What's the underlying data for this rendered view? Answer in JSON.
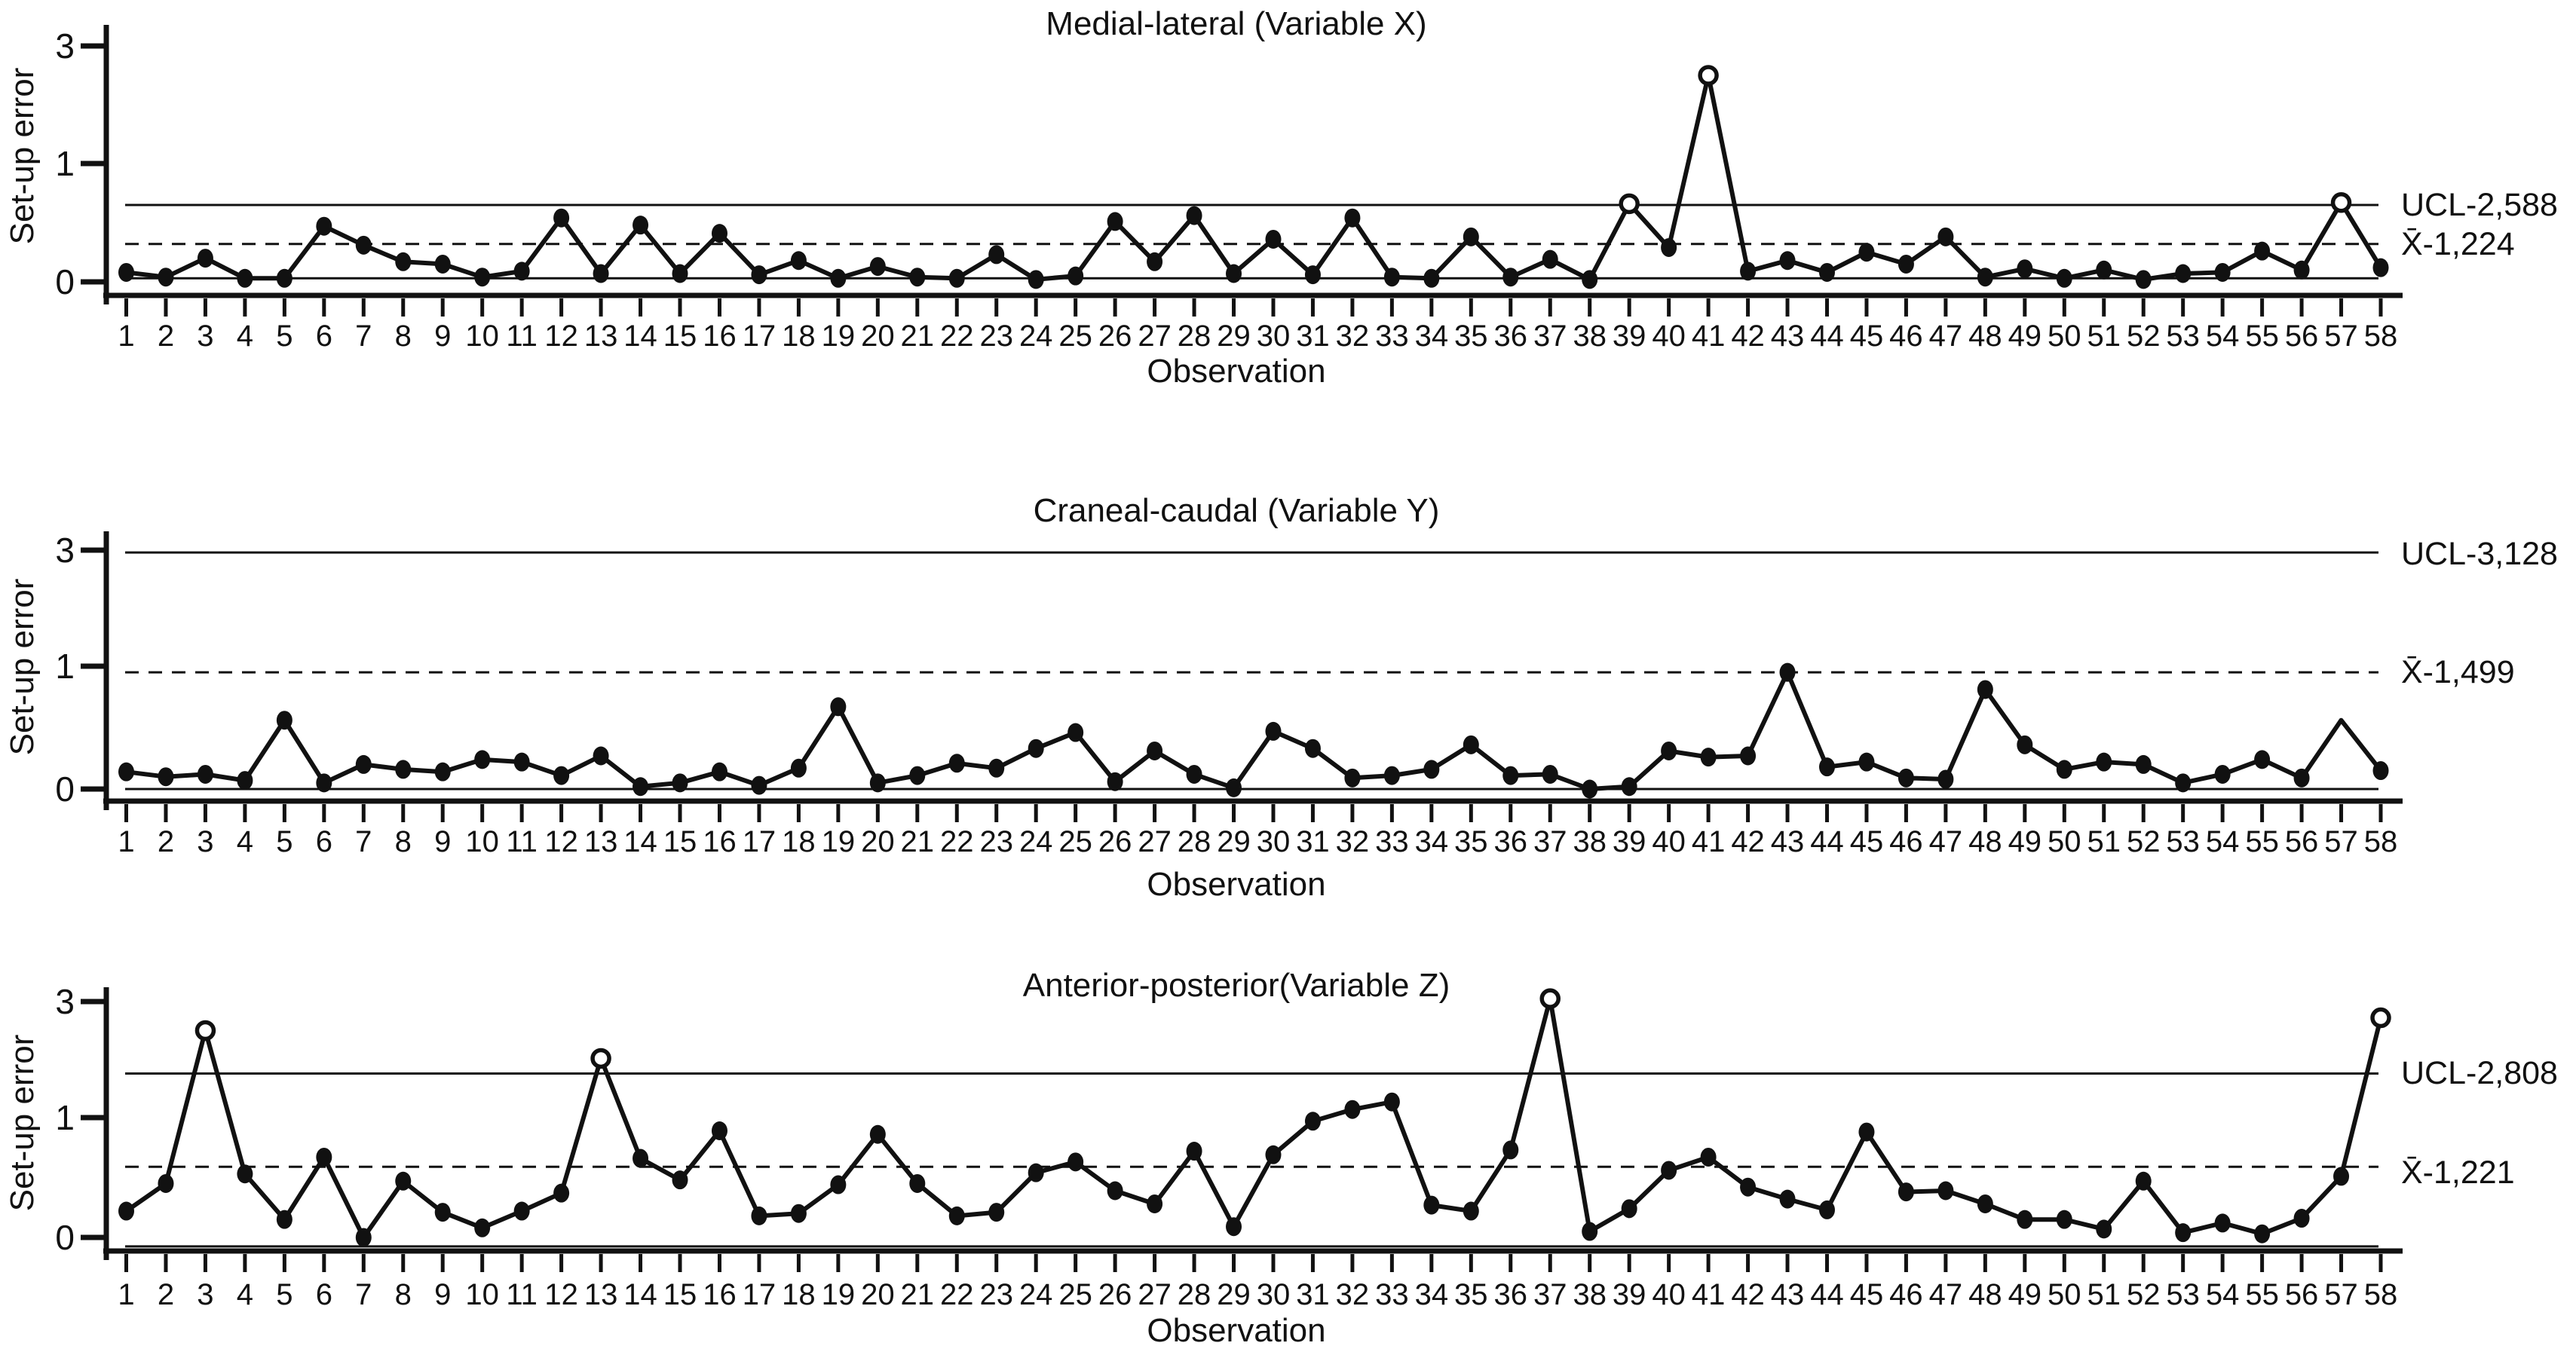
{
  "page": {
    "background_color": "#ffffff",
    "ink_color": "#111111",
    "figure_type": "statistical process control charts (individuals charts), 3 stacked panels"
  },
  "axis_shared": {
    "y_label": "Set-up error",
    "x_label": "Observation",
    "y_tick_labels": [
      "3",
      "1",
      "0"
    ],
    "y_tick_values": [
      3,
      1,
      0
    ],
    "x_categories": [
      "1",
      "2",
      "3",
      "4",
      "5",
      "6",
      "7",
      "8",
      "9",
      "10",
      "11",
      "12",
      "13",
      "14",
      "15",
      "16",
      "17",
      "18",
      "19",
      "20",
      "21",
      "22",
      "23",
      "24",
      "25",
      "26",
      "27",
      "28",
      "29",
      "30",
      "31",
      "32",
      "33",
      "34",
      "35",
      "36",
      "37",
      "38",
      "39",
      "40",
      "41",
      "42",
      "43",
      "44",
      "45",
      "46",
      "47",
      "48",
      "49",
      "50",
      "51",
      "52",
      "53",
      "54",
      "55",
      "56",
      "57",
      "58"
    ]
  },
  "chart_data": [
    {
      "type": "line",
      "title": "Medial-lateral (Variable X)",
      "ylabel": "Set-up error",
      "xlabel": "Observation",
      "ucl_label": "UCL-2,588",
      "mean_label": "X̄-1,224",
      "y_ticks": [
        0,
        1,
        3
      ],
      "y_scale_note": "ticks 0,1,3 equally spaced (region 1-3 compressed 2x)",
      "ucl_line_value": 0.65,
      "mean_line_value": 0.32,
      "baseline_value": 0.03,
      "legend_position": "right of plot, text beside UCL and mean lines",
      "grid": false,
      "values": [
        0.08,
        0.04,
        0.2,
        0.03,
        0.03,
        0.47,
        0.31,
        0.17,
        0.15,
        0.04,
        0.09,
        0.54,
        0.07,
        0.48,
        0.07,
        0.41,
        0.06,
        0.18,
        0.03,
        0.13,
        0.04,
        0.03,
        0.23,
        0.02,
        0.05,
        0.51,
        0.17,
        0.56,
        0.07,
        0.36,
        0.06,
        0.54,
        0.04,
        0.03,
        0.38,
        0.04,
        0.19,
        0.02,
        0.66,
        0.29,
        2.5,
        0.09,
        0.18,
        0.08,
        0.25,
        0.15,
        0.38,
        0.04,
        0.11,
        0.03,
        0.1,
        0.02,
        0.07,
        0.08,
        0.26,
        0.1,
        0.67,
        0.12
      ],
      "open_circle_observations": [
        39,
        41,
        57
      ],
      "no_marker_observations": []
    },
    {
      "type": "line",
      "title": "Craneal-caudal (Variable Y)",
      "ylabel": "Set-up error",
      "xlabel": "Observation",
      "ucl_label": "UCL-3,128",
      "mean_label": "X̄-1,499",
      "y_ticks": [
        0,
        1,
        3
      ],
      "y_scale_note": "ticks 0,1,3 equally spaced (region 1-3 compressed 2x)",
      "ucl_line_value": 2.96,
      "mean_line_value": 0.95,
      "baseline_value": 0.0,
      "legend_position": "right of plot, text beside UCL and mean lines",
      "grid": false,
      "values": [
        0.14,
        0.1,
        0.12,
        0.07,
        0.56,
        0.05,
        0.2,
        0.16,
        0.14,
        0.24,
        0.22,
        0.11,
        0.27,
        0.02,
        0.05,
        0.14,
        0.03,
        0.17,
        0.67,
        0.05,
        0.11,
        0.21,
        0.17,
        0.33,
        0.46,
        0.06,
        0.31,
        0.12,
        0.01,
        0.47,
        0.33,
        0.09,
        0.11,
        0.16,
        0.36,
        0.11,
        0.12,
        0.0,
        0.02,
        0.31,
        0.26,
        0.27,
        0.95,
        0.18,
        0.22,
        0.09,
        0.08,
        0.81,
        0.36,
        0.16,
        0.22,
        0.2,
        0.05,
        0.12,
        0.24,
        0.09,
        0.56,
        0.15
      ],
      "open_circle_observations": [],
      "no_marker_observations": [
        57
      ]
    },
    {
      "type": "line",
      "title": "Anterior-posterior(Variable Z)",
      "ylabel": "Set-up error",
      "xlabel": "Observation",
      "ucl_label": "UCL-2,808",
      "mean_label": "X̄-1,221",
      "y_ticks": [
        0,
        1,
        3
      ],
      "y_scale_note": "ticks 0,1,3 equally spaced (region 1-3 compressed 2x)",
      "ucl_line_value": 1.76,
      "mean_line_value": 0.59,
      "baseline_value": -0.075,
      "legend_position": "right of plot, text beside UCL and mean lines",
      "grid": false,
      "values": [
        0.22,
        0.45,
        2.5,
        0.53,
        0.15,
        0.67,
        0.0,
        0.47,
        0.21,
        0.08,
        0.22,
        0.37,
        2.02,
        0.66,
        0.48,
        0.89,
        0.18,
        0.2,
        0.44,
        0.86,
        0.45,
        0.18,
        0.21,
        0.54,
        0.63,
        0.39,
        0.28,
        0.72,
        0.09,
        0.69,
        0.97,
        1.14,
        1.27,
        0.27,
        0.22,
        0.73,
        3.05,
        0.05,
        0.24,
        0.56,
        0.67,
        0.42,
        0.32,
        0.23,
        0.88,
        0.38,
        0.39,
        0.28,
        0.15,
        0.15,
        0.07,
        0.47,
        0.04,
        0.12,
        0.03,
        0.16,
        0.51,
        2.72
      ],
      "open_circle_observations": [
        3,
        13,
        37,
        58
      ],
      "no_marker_observations": []
    }
  ]
}
